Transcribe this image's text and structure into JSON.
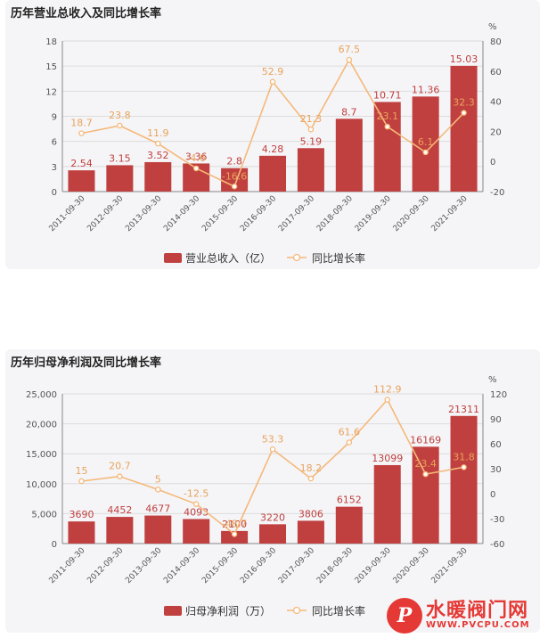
{
  "charts": [
    {
      "title": "历年营业总收入及同比增长率",
      "chart_data": {
        "type": "bar",
        "categories": [
          "2011-09-30",
          "2012-09-30",
          "2013-09-30",
          "2014-09-30",
          "2015-09-30",
          "2016-09-30",
          "2017-09-30",
          "2018-09-30",
          "2019-09-30",
          "2020-09-30",
          "2021-09-30"
        ],
        "series": [
          {
            "name": "营业总收入（亿）",
            "type": "bar",
            "axis": "left",
            "values": [
              2.54,
              3.15,
              3.52,
              3.36,
              2.8,
              4.28,
              5.19,
              8.7,
              10.71,
              11.36,
              15.03
            ],
            "labels": [
              "2.54",
              "3.15",
              "3.52",
              "3.36",
              "2.8",
              "4.28",
              "5.19",
              "8.7",
              "10.71",
              "11.36",
              "15.03"
            ]
          },
          {
            "name": "同比增长率",
            "type": "line",
            "axis": "right",
            "values": [
              18.7,
              23.8,
              11.9,
              -4.6,
              -16.6,
              52.9,
              21.3,
              67.5,
              23.1,
              6.1,
              32.3
            ],
            "labels": [
              "18.7",
              "23.8",
              "11.9",
              "-4.6",
              "-16.6",
              "52.9",
              "21.3",
              "67.5",
              "23.1",
              "6.1",
              "32.3"
            ]
          }
        ],
        "y_left": {
          "min": 0,
          "max": 18,
          "ticks": [
            "0",
            "3",
            "6",
            "9",
            "12",
            "15",
            "18"
          ]
        },
        "y_right": {
          "unit": "%",
          "min": -20,
          "max": 80,
          "ticks": [
            "-20",
            "0",
            "20",
            "40",
            "60",
            "80"
          ]
        },
        "legend_placement": "bottom-center",
        "grid": true
      }
    },
    {
      "title": "历年归母净利润及同比增长率",
      "chart_data": {
        "type": "bar",
        "categories": [
          "2011-09-30",
          "2012-09-30",
          "2013-09-30",
          "2014-09-30",
          "2015-09-30",
          "2016-09-30",
          "2017-09-30",
          "2018-09-30",
          "2019-09-30",
          "2020-09-30",
          "2021-09-30"
        ],
        "series": [
          {
            "name": "归母净利润（万）",
            "type": "bar",
            "axis": "left",
            "values": [
              3690,
              4452,
              4677,
              4093,
              2100,
              3220,
              3806,
              6152,
              13099,
              16169,
              21311
            ],
            "labels": [
              "3690",
              "4452",
              "4677",
              "4093",
              "2100",
              "3220",
              "3806",
              "6152",
              "13099",
              "16169",
              "21311"
            ]
          },
          {
            "name": "同比增长率",
            "type": "line",
            "axis": "right",
            "values": [
              15,
              20.7,
              5,
              -12.5,
              -48.7,
              53.3,
              18.2,
              61.6,
              112.9,
              23.4,
              31.8
            ],
            "labels": [
              "15",
              "20.7",
              "5",
              "-12.5",
              "-48.7",
              "53.3",
              "18.2",
              "61.6",
              "112.9",
              "23.4",
              "31.8"
            ]
          }
        ],
        "y_left": {
          "min": 0,
          "max": 25000,
          "ticks": [
            "0",
            "5,000",
            "10,000",
            "15,000",
            "20,000",
            "25,000"
          ]
        },
        "y_right": {
          "unit": "%",
          "min": -60,
          "max": 120,
          "ticks": [
            "-60",
            "-30",
            "0",
            "30",
            "60",
            "90",
            "120"
          ]
        },
        "legend_placement": "bottom-center",
        "grid": true
      }
    }
  ],
  "colors": {
    "bar": "#c0403f",
    "line": "#f5b87a",
    "line_label": "#e8a35c",
    "bar_label": "#c0403f"
  },
  "watermark": {
    "logo_letter": "P",
    "name": "水暖阀门网",
    "url": "WWW.PVCPU.COM"
  }
}
